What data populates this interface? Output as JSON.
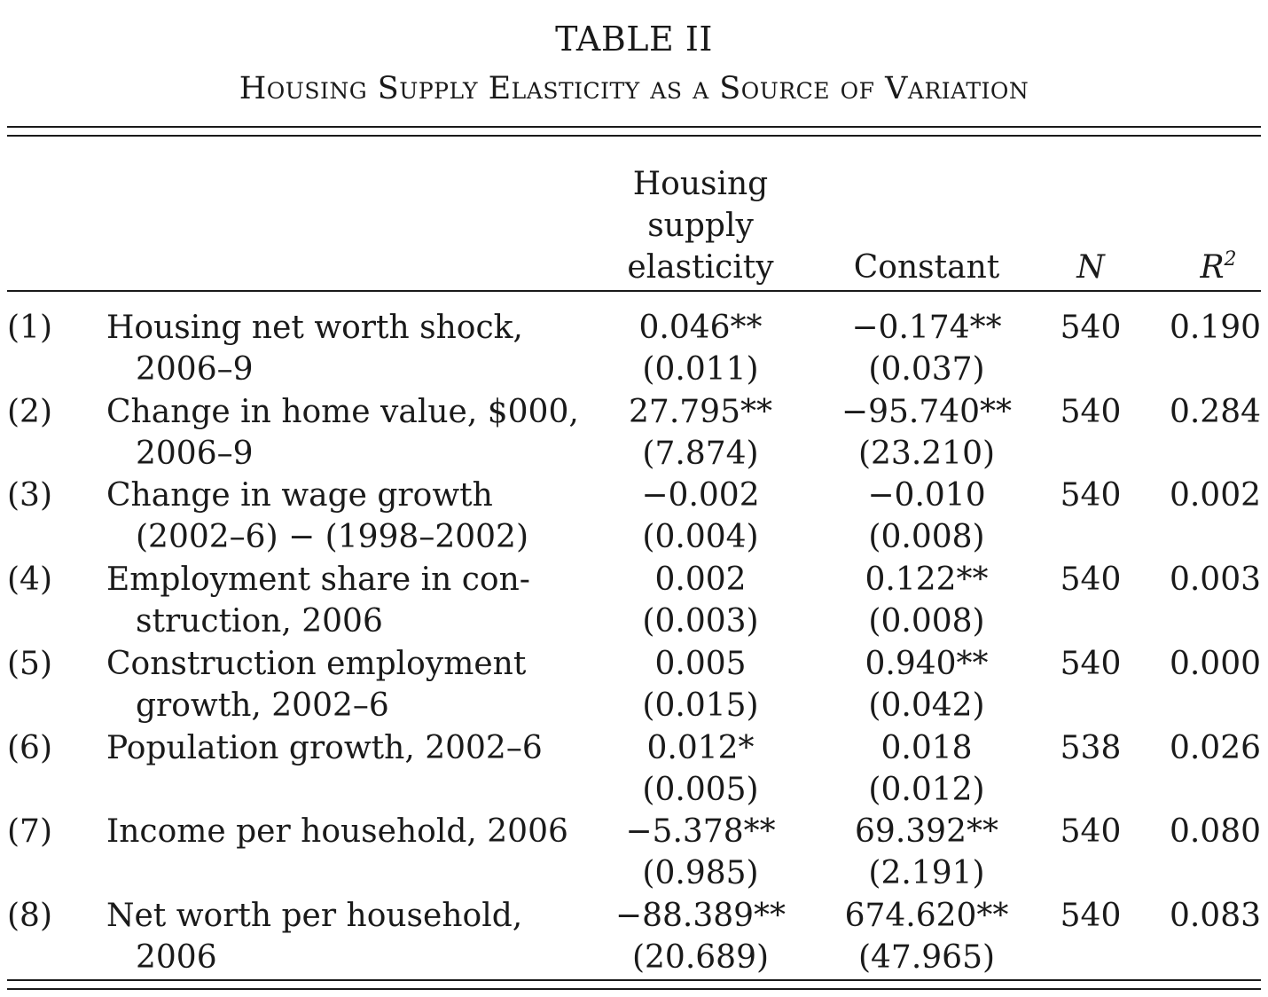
{
  "table": {
    "title": "TABLE II",
    "subtitle": "Housing Supply Elasticity as a Source of Variation",
    "headers": {
      "elasticity_line1": "Housing",
      "elasticity_line2": "supply",
      "elasticity_line3": "elasticity",
      "constant": "Constant",
      "n": "N",
      "r2_base": "R",
      "r2_sup": "2"
    },
    "rows": [
      {
        "num": "(1)",
        "label1": "Housing net worth shock,",
        "label2": "2006–9",
        "elasticity": "0.046**",
        "elasticity_se": "(0.011)",
        "constant": "−0.174**",
        "constant_se": "(0.037)",
        "n": "540",
        "r2": "0.190"
      },
      {
        "num": "(2)",
        "label1": "Change in home value, $000,",
        "label2": "2006–9",
        "elasticity": "27.795**",
        "elasticity_se": "(7.874)",
        "constant": "−95.740**",
        "constant_se": "(23.210)",
        "n": "540",
        "r2": "0.284"
      },
      {
        "num": "(3)",
        "label1": "Change in wage growth",
        "label2": "(2002–6) − (1998–2002)",
        "elasticity": "−0.002",
        "elasticity_se": "(0.004)",
        "constant": "−0.010",
        "constant_se": "(0.008)",
        "n": "540",
        "r2": "0.002"
      },
      {
        "num": "(4)",
        "label1": "Employment share in con-",
        "label2": "struction, 2006",
        "elasticity": "0.002",
        "elasticity_se": "(0.003)",
        "constant": "0.122**",
        "constant_se": "(0.008)",
        "n": "540",
        "r2": "0.003"
      },
      {
        "num": "(5)",
        "label1": "Construction employment",
        "label2": "growth, 2002–6",
        "elasticity": "0.005",
        "elasticity_se": "(0.015)",
        "constant": "0.940**",
        "constant_se": "(0.042)",
        "n": "540",
        "r2": "0.000"
      },
      {
        "num": "(6)",
        "label1": "Population growth, 2002–6",
        "label2": "",
        "elasticity": "0.012*",
        "elasticity_se": "(0.005)",
        "constant": "0.018",
        "constant_se": "(0.012)",
        "n": "538",
        "r2": "0.026"
      },
      {
        "num": "(7)",
        "label1": "Income per household, 2006",
        "label2": "",
        "elasticity": "−5.378**",
        "elasticity_se": "(0.985)",
        "constant": "69.392**",
        "constant_se": "(2.191)",
        "n": "540",
        "r2": "0.080"
      },
      {
        "num": "(8)",
        "label1": "Net worth per household,",
        "label2": "2006",
        "elasticity": "−88.389**",
        "elasticity_se": "(20.689)",
        "constant": "674.620**",
        "constant_se": "(47.965)",
        "n": "540",
        "r2": "0.083"
      }
    ]
  }
}
